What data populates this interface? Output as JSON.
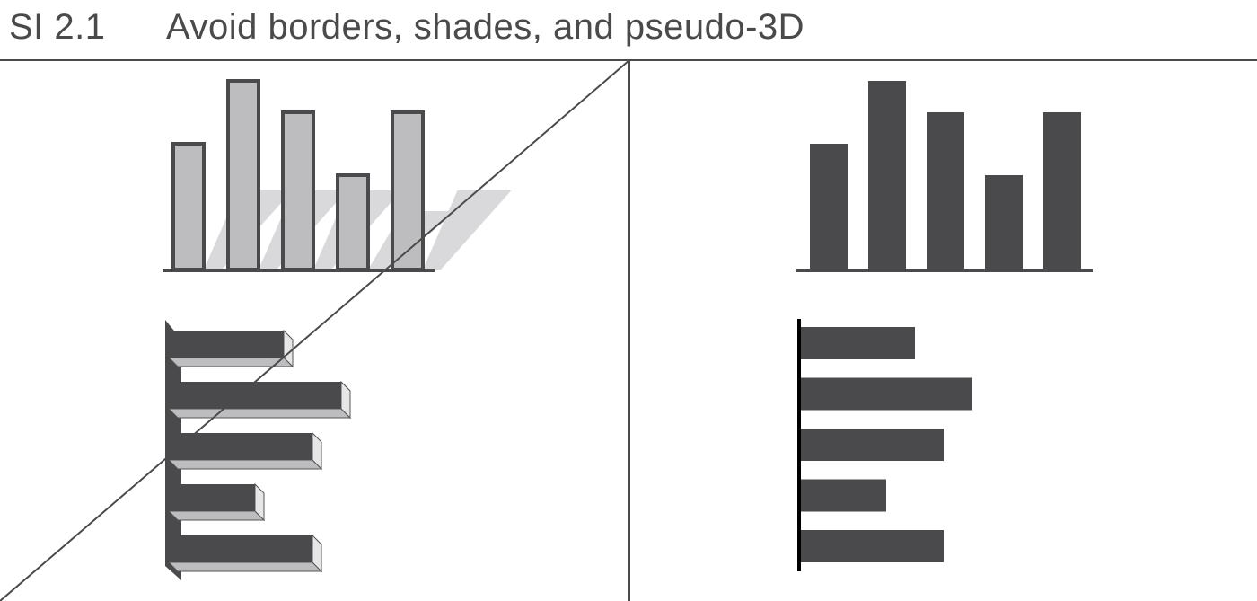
{
  "header": {
    "number": "SI 2.1",
    "title": "Avoid borders, shades, and pseudo-3D"
  },
  "colors": {
    "dark_fill": "#4a4a4c",
    "light_fill": "#bdbdbf",
    "shadow": "#d9d9db",
    "border": "#4a4a4c",
    "rule": "#4a4a4c"
  },
  "panels": {
    "bad": {
      "status": "crossed-out",
      "column_values": [
        4,
        6,
        5,
        3,
        5
      ],
      "bar_values": [
        4,
        6,
        5,
        3,
        5
      ]
    },
    "good": {
      "status": "recommended",
      "column_values": [
        4,
        6,
        5,
        3,
        5
      ],
      "bar_values": [
        4,
        6,
        5,
        3,
        5
      ]
    }
  }
}
